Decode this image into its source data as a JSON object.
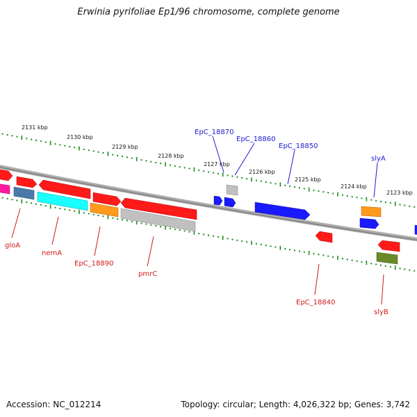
{
  "title": "Erwinia pyrifoliae Ep1/96 chromosome, complete genome",
  "footer": {
    "accession": "Accession: NC_012214",
    "summary": "Topology: circular; Length: 4,026,322 bp; Genes: 3,742"
  },
  "colors": {
    "backbone": "#8a8a8a",
    "ruler": "#1a8a1a",
    "red": "#ff1a1a",
    "blue": "#1a1aff",
    "cyan": "#1affff",
    "magenta": "#ff1aa0",
    "orange": "#ff9a1a",
    "steel": "#4a7aa8",
    "gray": "#c0c0c0",
    "olive": "#6a8a2a",
    "label_blue": "#1a1ad0",
    "label_red": "#d01a1a"
  },
  "ruler_labels": [
    "2131 kbp",
    "2130 kbp",
    "2129 kbp",
    "2128 kbp",
    "2127 kbp",
    "2126 kbp",
    "2125 kbp",
    "2124 kbp",
    "2123 kbp"
  ],
  "genes_outer": [
    {
      "kind": "red"
    },
    {
      "kind": "red"
    },
    {
      "kind": "red"
    },
    {
      "kind": "red"
    },
    {
      "kind": "red"
    }
  ],
  "genes_inner": [
    {
      "kind": "magenta"
    },
    {
      "kind": "steel"
    },
    {
      "kind": "cyan"
    },
    {
      "kind": "orange"
    },
    {
      "kind": "gray"
    }
  ],
  "genes_right_plus": [
    {
      "kind": "gray"
    },
    {
      "kind": "blue"
    },
    {
      "kind": "blue"
    },
    {
      "kind": "blue"
    },
    {
      "kind": "orange"
    },
    {
      "kind": "blue"
    }
  ],
  "genes_right_minus": [
    {
      "kind": "red"
    },
    {
      "kind": "red"
    },
    {
      "kind": "olive"
    }
  ],
  "labels_top": [
    "EpC_18870",
    "EpC_18860",
    "EpC_18850",
    "slyA"
  ],
  "labels_bottom": [
    "gloA",
    "nemA",
    "EpC_18890",
    "pmrC",
    "EpC_18840",
    "slyB"
  ]
}
